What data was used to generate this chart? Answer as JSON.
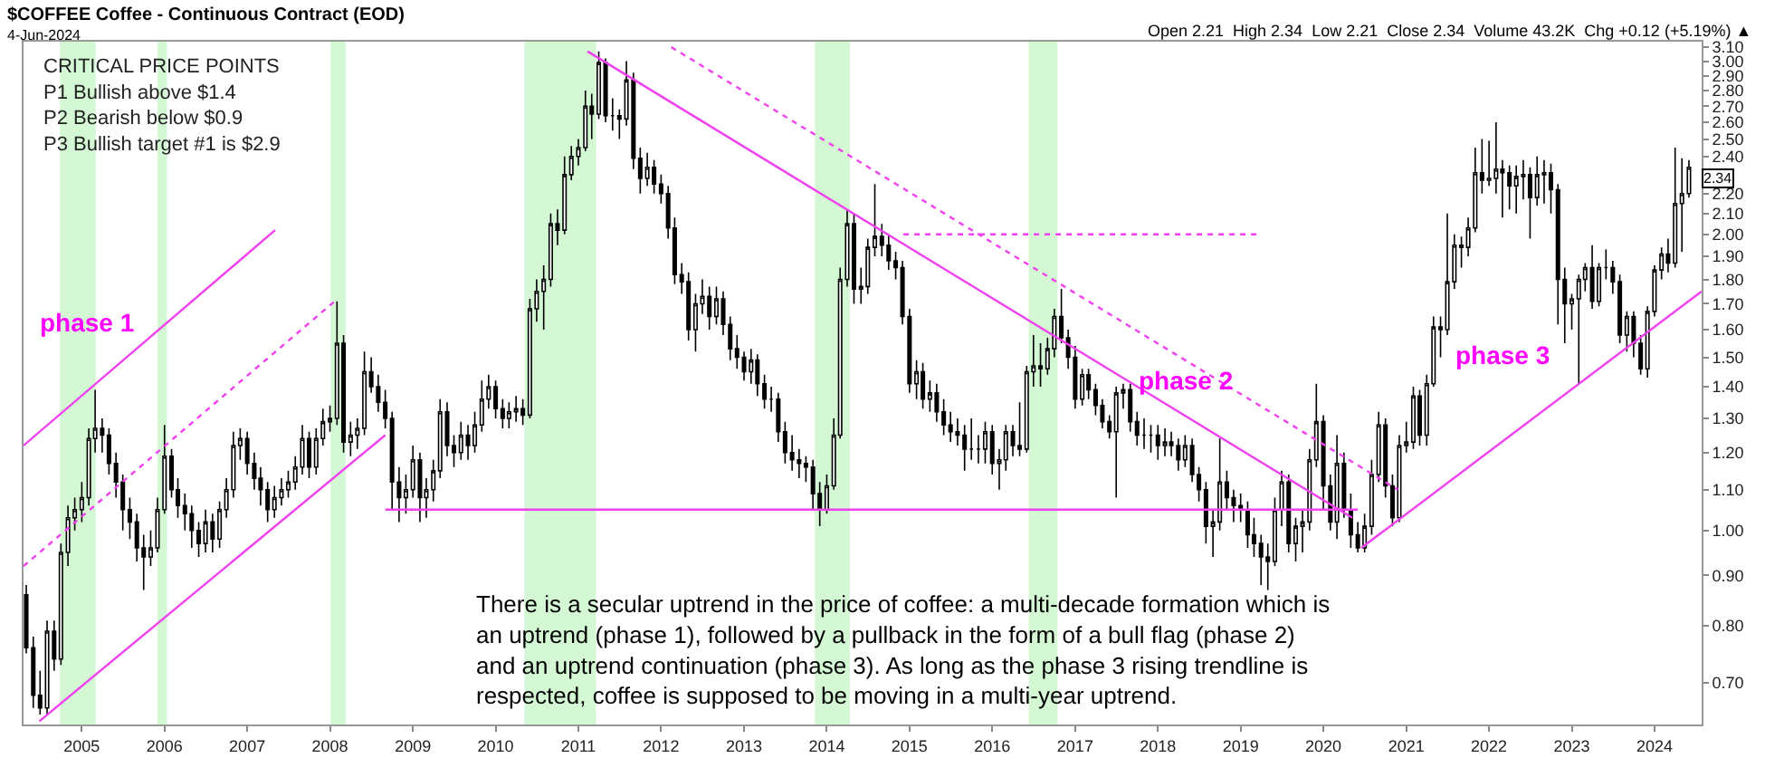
{
  "chart_data": {
    "type": "candlestick",
    "title": "$COFFEE Coffee - Continuous Contract (EOD)",
    "subtitle": "4-Jun-2024",
    "x": [
      "2004-05",
      "2004-06",
      "2004-07",
      "2004-08",
      "2004-09",
      "2004-10",
      "2004-11",
      "2004-12",
      "2005-01",
      "2005-02",
      "2005-03",
      "2005-04",
      "2005-05",
      "2005-06",
      "2005-07",
      "2005-08",
      "2005-09",
      "2005-10",
      "2005-11",
      "2005-12",
      "2006-01",
      "2006-02",
      "2006-03",
      "2006-04",
      "2006-05",
      "2006-06",
      "2006-07",
      "2006-08",
      "2006-09",
      "2006-10",
      "2006-11",
      "2006-12",
      "2007-01",
      "2007-02",
      "2007-03",
      "2007-04",
      "2007-05",
      "2007-06",
      "2007-07",
      "2007-08",
      "2007-09",
      "2007-10",
      "2007-11",
      "2007-12",
      "2008-01",
      "2008-02",
      "2008-03",
      "2008-04",
      "2008-05",
      "2008-06",
      "2008-07",
      "2008-08",
      "2008-09",
      "2008-10",
      "2008-11",
      "2008-12",
      "2009-01",
      "2009-02",
      "2009-03",
      "2009-04",
      "2009-05",
      "2009-06",
      "2009-07",
      "2009-08",
      "2009-09",
      "2009-10",
      "2009-11",
      "2009-12",
      "2010-01",
      "2010-02",
      "2010-03",
      "2010-04",
      "2010-05",
      "2010-06",
      "2010-07",
      "2010-08",
      "2010-09",
      "2010-10",
      "2010-11",
      "2010-12",
      "2011-01",
      "2011-02",
      "2011-03",
      "2011-04",
      "2011-05",
      "2011-06",
      "2011-07",
      "2011-08",
      "2011-09",
      "2011-10",
      "2011-11",
      "2011-12",
      "2012-01",
      "2012-02",
      "2012-03",
      "2012-04",
      "2012-05",
      "2012-06",
      "2012-07",
      "2012-08",
      "2012-09",
      "2012-10",
      "2012-11",
      "2012-12",
      "2013-01",
      "2013-02",
      "2013-03",
      "2013-04",
      "2013-05",
      "2013-06",
      "2013-07",
      "2013-08",
      "2013-09",
      "2013-10",
      "2013-11",
      "2013-12",
      "2014-01",
      "2014-02",
      "2014-03",
      "2014-04",
      "2014-05",
      "2014-06",
      "2014-07",
      "2014-08",
      "2014-09",
      "2014-10",
      "2014-11",
      "2014-12",
      "2015-01",
      "2015-02",
      "2015-03",
      "2015-04",
      "2015-05",
      "2015-06",
      "2015-07",
      "2015-08",
      "2015-09",
      "2015-10",
      "2015-11",
      "2015-12",
      "2016-01",
      "2016-02",
      "2016-03",
      "2016-04",
      "2016-05",
      "2016-06",
      "2016-07",
      "2016-08",
      "2016-09",
      "2016-10",
      "2016-11",
      "2016-12",
      "2017-01",
      "2017-02",
      "2017-03",
      "2017-04",
      "2017-05",
      "2017-06",
      "2017-07",
      "2017-08",
      "2017-09",
      "2017-10",
      "2017-11",
      "2017-12",
      "2018-01",
      "2018-02",
      "2018-03",
      "2018-04",
      "2018-05",
      "2018-06",
      "2018-07",
      "2018-08",
      "2018-09",
      "2018-10",
      "2018-11",
      "2018-12",
      "2019-01",
      "2019-02",
      "2019-03",
      "2019-04",
      "2019-05",
      "2019-06",
      "2019-07",
      "2019-08",
      "2019-09",
      "2019-10",
      "2019-11",
      "2019-12",
      "2020-01",
      "2020-02",
      "2020-03",
      "2020-04",
      "2020-05",
      "2020-06",
      "2020-07",
      "2020-08",
      "2020-09",
      "2020-10",
      "2020-11",
      "2020-12",
      "2021-01",
      "2021-02",
      "2021-03",
      "2021-04",
      "2021-05",
      "2021-06",
      "2021-07",
      "2021-08",
      "2021-09",
      "2021-10",
      "2021-11",
      "2021-12",
      "2022-01",
      "2022-02",
      "2022-03",
      "2022-04",
      "2022-05",
      "2022-06",
      "2022-07",
      "2022-08",
      "2022-09",
      "2022-10",
      "2022-11",
      "2022-12",
      "2023-01",
      "2023-02",
      "2023-03",
      "2023-04",
      "2023-05",
      "2023-06",
      "2023-07",
      "2023-08",
      "2023-09",
      "2023-10",
      "2023-11",
      "2023-12",
      "2024-01",
      "2024-02",
      "2024-03",
      "2024-04",
      "2024-05",
      "2024-06"
    ],
    "ohlc": [
      [
        0.86,
        0.88,
        0.75,
        0.76
      ],
      [
        0.76,
        0.78,
        0.66,
        0.68
      ],
      [
        0.68,
        0.72,
        0.65,
        0.66
      ],
      [
        0.66,
        0.81,
        0.65,
        0.79
      ],
      [
        0.79,
        0.81,
        0.72,
        0.74
      ],
      [
        0.74,
        0.97,
        0.73,
        0.95
      ],
      [
        0.95,
        1.06,
        0.92,
        1.03
      ],
      [
        1.03,
        1.08,
        1.0,
        1.05
      ],
      [
        1.05,
        1.12,
        1.02,
        1.08
      ],
      [
        1.08,
        1.27,
        1.06,
        1.24
      ],
      [
        1.24,
        1.39,
        1.2,
        1.27
      ],
      [
        1.27,
        1.3,
        1.2,
        1.25
      ],
      [
        1.25,
        1.27,
        1.14,
        1.17
      ],
      [
        1.17,
        1.2,
        1.08,
        1.12
      ],
      [
        1.12,
        1.14,
        1.0,
        1.05
      ],
      [
        1.05,
        1.08,
        0.98,
        1.02
      ],
      [
        1.02,
        1.04,
        0.93,
        0.96
      ],
      [
        0.96,
        0.99,
        0.87,
        0.94
      ],
      [
        0.94,
        1.0,
        0.92,
        0.96
      ],
      [
        0.96,
        1.08,
        0.95,
        1.05
      ],
      [
        1.05,
        1.28,
        1.04,
        1.19
      ],
      [
        1.19,
        1.21,
        1.08,
        1.1
      ],
      [
        1.1,
        1.13,
        1.03,
        1.06
      ],
      [
        1.06,
        1.09,
        1.0,
        1.04
      ],
      [
        1.04,
        1.06,
        0.96,
        1.0
      ],
      [
        1.0,
        1.02,
        0.94,
        0.97
      ],
      [
        0.97,
        1.05,
        0.95,
        1.02
      ],
      [
        1.02,
        1.04,
        0.95,
        0.98
      ],
      [
        0.98,
        1.07,
        0.96,
        1.05
      ],
      [
        1.05,
        1.13,
        1.03,
        1.1
      ],
      [
        1.1,
        1.26,
        1.08,
        1.22
      ],
      [
        1.22,
        1.27,
        1.18,
        1.24
      ],
      [
        1.24,
        1.26,
        1.14,
        1.17
      ],
      [
        1.17,
        1.2,
        1.1,
        1.13
      ],
      [
        1.13,
        1.16,
        1.06,
        1.1
      ],
      [
        1.1,
        1.12,
        1.02,
        1.05
      ],
      [
        1.05,
        1.11,
        1.03,
        1.08
      ],
      [
        1.08,
        1.13,
        1.06,
        1.1
      ],
      [
        1.1,
        1.15,
        1.08,
        1.12
      ],
      [
        1.12,
        1.19,
        1.1,
        1.16
      ],
      [
        1.16,
        1.28,
        1.14,
        1.24
      ],
      [
        1.24,
        1.26,
        1.13,
        1.16
      ],
      [
        1.16,
        1.27,
        1.14,
        1.24
      ],
      [
        1.24,
        1.33,
        1.22,
        1.29
      ],
      [
        1.29,
        1.34,
        1.26,
        1.3
      ],
      [
        1.3,
        1.71,
        1.28,
        1.55
      ],
      [
        1.55,
        1.58,
        1.2,
        1.23
      ],
      [
        1.23,
        1.29,
        1.19,
        1.25
      ],
      [
        1.25,
        1.3,
        1.21,
        1.27
      ],
      [
        1.27,
        1.52,
        1.25,
        1.45
      ],
      [
        1.45,
        1.5,
        1.38,
        1.4
      ],
      [
        1.4,
        1.44,
        1.32,
        1.35
      ],
      [
        1.35,
        1.39,
        1.27,
        1.3
      ],
      [
        1.3,
        1.32,
        1.05,
        1.12
      ],
      [
        1.12,
        1.16,
        1.02,
        1.08
      ],
      [
        1.08,
        1.14,
        1.04,
        1.1
      ],
      [
        1.1,
        1.22,
        1.08,
        1.18
      ],
      [
        1.18,
        1.2,
        1.02,
        1.08
      ],
      [
        1.08,
        1.13,
        1.03,
        1.1
      ],
      [
        1.1,
        1.18,
        1.07,
        1.15
      ],
      [
        1.15,
        1.36,
        1.13,
        1.32
      ],
      [
        1.32,
        1.35,
        1.19,
        1.22
      ],
      [
        1.22,
        1.25,
        1.16,
        1.2
      ],
      [
        1.2,
        1.29,
        1.18,
        1.25
      ],
      [
        1.25,
        1.28,
        1.18,
        1.22
      ],
      [
        1.22,
        1.32,
        1.2,
        1.28
      ],
      [
        1.28,
        1.42,
        1.26,
        1.36
      ],
      [
        1.36,
        1.44,
        1.33,
        1.4
      ],
      [
        1.4,
        1.42,
        1.3,
        1.33
      ],
      [
        1.33,
        1.36,
        1.27,
        1.3
      ],
      [
        1.3,
        1.35,
        1.27,
        1.32
      ],
      [
        1.32,
        1.37,
        1.29,
        1.33
      ],
      [
        1.33,
        1.36,
        1.28,
        1.31
      ],
      [
        1.31,
        1.72,
        1.3,
        1.68
      ],
      [
        1.68,
        1.8,
        1.63,
        1.75
      ],
      [
        1.75,
        1.86,
        1.6,
        1.8
      ],
      [
        1.8,
        2.1,
        1.77,
        2.05
      ],
      [
        2.05,
        2.12,
        1.95,
        2.02
      ],
      [
        2.02,
        2.4,
        2.0,
        2.3
      ],
      [
        2.3,
        2.46,
        2.27,
        2.4
      ],
      [
        2.4,
        2.5,
        2.35,
        2.45
      ],
      [
        2.45,
        2.8,
        2.43,
        2.7
      ],
      [
        2.7,
        2.78,
        2.5,
        2.65
      ],
      [
        2.65,
        3.07,
        2.62,
        2.99
      ],
      [
        2.99,
        3.02,
        2.6,
        2.64
      ],
      [
        2.64,
        2.75,
        2.55,
        2.64
      ],
      [
        2.64,
        2.68,
        2.5,
        2.62
      ],
      [
        2.62,
        3.0,
        2.58,
        2.87
      ],
      [
        2.87,
        2.92,
        2.33,
        2.39
      ],
      [
        2.39,
        2.45,
        2.2,
        2.28
      ],
      [
        2.28,
        2.42,
        2.24,
        2.34
      ],
      [
        2.34,
        2.38,
        2.2,
        2.25
      ],
      [
        2.25,
        2.3,
        2.15,
        2.2
      ],
      [
        2.2,
        2.24,
        1.98,
        2.03
      ],
      [
        2.03,
        2.08,
        1.78,
        1.82
      ],
      [
        1.82,
        1.87,
        1.74,
        1.79
      ],
      [
        1.79,
        1.83,
        1.56,
        1.6
      ],
      [
        1.6,
        1.74,
        1.52,
        1.7
      ],
      [
        1.7,
        1.8,
        1.66,
        1.73
      ],
      [
        1.73,
        1.77,
        1.6,
        1.65
      ],
      [
        1.65,
        1.77,
        1.62,
        1.72
      ],
      [
        1.72,
        1.75,
        1.58,
        1.62
      ],
      [
        1.62,
        1.65,
        1.49,
        1.53
      ],
      [
        1.53,
        1.58,
        1.46,
        1.5
      ],
      [
        1.5,
        1.52,
        1.42,
        1.45
      ],
      [
        1.45,
        1.53,
        1.41,
        1.49
      ],
      [
        1.49,
        1.51,
        1.37,
        1.41
      ],
      [
        1.41,
        1.44,
        1.33,
        1.36
      ],
      [
        1.36,
        1.4,
        1.32,
        1.36
      ],
      [
        1.36,
        1.38,
        1.23,
        1.26
      ],
      [
        1.26,
        1.29,
        1.17,
        1.2
      ],
      [
        1.2,
        1.25,
        1.15,
        1.18
      ],
      [
        1.18,
        1.21,
        1.13,
        1.17
      ],
      [
        1.17,
        1.19,
        1.12,
        1.16
      ],
      [
        1.16,
        1.18,
        1.05,
        1.09
      ],
      [
        1.09,
        1.12,
        1.01,
        1.05
      ],
      [
        1.05,
        1.14,
        1.04,
        1.11
      ],
      [
        1.11,
        1.3,
        1.1,
        1.25
      ],
      [
        1.25,
        1.85,
        1.24,
        1.8
      ],
      [
        1.8,
        2.12,
        1.77,
        2.05
      ],
      [
        2.05,
        2.1,
        1.7,
        1.76
      ],
      [
        1.76,
        1.85,
        1.7,
        1.77
      ],
      [
        1.77,
        1.98,
        1.74,
        1.94
      ],
      [
        1.94,
        2.25,
        1.9,
        1.99
      ],
      [
        1.99,
        2.05,
        1.9,
        1.95
      ],
      [
        1.95,
        2.0,
        1.84,
        1.88
      ],
      [
        1.88,
        1.92,
        1.8,
        1.85
      ],
      [
        1.85,
        1.88,
        1.62,
        1.65
      ],
      [
        1.65,
        1.68,
        1.38,
        1.41
      ],
      [
        1.41,
        1.49,
        1.36,
        1.45
      ],
      [
        1.45,
        1.48,
        1.33,
        1.36
      ],
      [
        1.36,
        1.42,
        1.32,
        1.38
      ],
      [
        1.38,
        1.41,
        1.29,
        1.32
      ],
      [
        1.32,
        1.36,
        1.25,
        1.28
      ],
      [
        1.28,
        1.32,
        1.23,
        1.26
      ],
      [
        1.26,
        1.3,
        1.22,
        1.25
      ],
      [
        1.25,
        1.28,
        1.15,
        1.21
      ],
      [
        1.21,
        1.3,
        1.18,
        1.21
      ],
      [
        1.21,
        1.25,
        1.17,
        1.21
      ],
      [
        1.21,
        1.29,
        1.17,
        1.26
      ],
      [
        1.26,
        1.28,
        1.14,
        1.17
      ],
      [
        1.17,
        1.21,
        1.1,
        1.18
      ],
      [
        1.18,
        1.28,
        1.15,
        1.26
      ],
      [
        1.26,
        1.28,
        1.19,
        1.22
      ],
      [
        1.22,
        1.35,
        1.19,
        1.21
      ],
      [
        1.21,
        1.47,
        1.2,
        1.45
      ],
      [
        1.45,
        1.58,
        1.4,
        1.47
      ],
      [
        1.47,
        1.55,
        1.4,
        1.46
      ],
      [
        1.46,
        1.57,
        1.44,
        1.53
      ],
      [
        1.53,
        1.68,
        1.5,
        1.65
      ],
      [
        1.65,
        1.76,
        1.55,
        1.57
      ],
      [
        1.57,
        1.6,
        1.46,
        1.5
      ],
      [
        1.5,
        1.54,
        1.33,
        1.36
      ],
      [
        1.36,
        1.46,
        1.34,
        1.44
      ],
      [
        1.44,
        1.46,
        1.36,
        1.39
      ],
      [
        1.39,
        1.41,
        1.31,
        1.34
      ],
      [
        1.34,
        1.36,
        1.27,
        1.29
      ],
      [
        1.29,
        1.31,
        1.24,
        1.26
      ],
      [
        1.26,
        1.4,
        1.08,
        1.38
      ],
      [
        1.38,
        1.41,
        1.33,
        1.39
      ],
      [
        1.39,
        1.41,
        1.26,
        1.29
      ],
      [
        1.29,
        1.32,
        1.22,
        1.25
      ],
      [
        1.25,
        1.3,
        1.21,
        1.25
      ],
      [
        1.25,
        1.28,
        1.2,
        1.25
      ],
      [
        1.25,
        1.28,
        1.18,
        1.22
      ],
      [
        1.22,
        1.27,
        1.19,
        1.23
      ],
      [
        1.23,
        1.26,
        1.19,
        1.22
      ],
      [
        1.22,
        1.24,
        1.15,
        1.18
      ],
      [
        1.18,
        1.25,
        1.16,
        1.22
      ],
      [
        1.22,
        1.24,
        1.12,
        1.14
      ],
      [
        1.14,
        1.16,
        1.07,
        1.1
      ],
      [
        1.1,
        1.12,
        0.97,
        1.01
      ],
      [
        1.01,
        1.05,
        0.94,
        1.02
      ],
      [
        1.02,
        1.24,
        1.0,
        1.12
      ],
      [
        1.12,
        1.15,
        1.05,
        1.08
      ],
      [
        1.08,
        1.1,
        1.02,
        1.06
      ],
      [
        1.06,
        1.09,
        1.02,
        1.05
      ],
      [
        1.05,
        1.07,
        0.96,
        0.99
      ],
      [
        0.99,
        1.03,
        0.94,
        0.97
      ],
      [
        0.97,
        0.99,
        0.88,
        0.94
      ],
      [
        0.94,
        0.97,
        0.87,
        0.93
      ],
      [
        0.93,
        1.08,
        0.92,
        1.05
      ],
      [
        1.05,
        1.15,
        1.01,
        1.12
      ],
      [
        1.12,
        1.14,
        0.95,
        0.97
      ],
      [
        0.97,
        1.03,
        0.93,
        1.01
      ],
      [
        1.01,
        1.05,
        0.95,
        1.02
      ],
      [
        1.02,
        1.21,
        1.0,
        1.18
      ],
      [
        1.18,
        1.41,
        1.16,
        1.29
      ],
      [
        1.29,
        1.31,
        1.05,
        1.11
      ],
      [
        1.11,
        1.14,
        1.0,
        1.02
      ],
      [
        1.02,
        1.25,
        0.98,
        1.17
      ],
      [
        1.17,
        1.2,
        1.03,
        1.05
      ],
      [
        1.05,
        1.09,
        0.96,
        0.99
      ],
      [
        0.99,
        1.02,
        0.95,
        0.96
      ],
      [
        0.96,
        1.04,
        0.95,
        1.01
      ],
      [
        1.01,
        1.18,
        0.99,
        1.14
      ],
      [
        1.14,
        1.32,
        1.12,
        1.28
      ],
      [
        1.28,
        1.3,
        1.08,
        1.11
      ],
      [
        1.11,
        1.14,
        1.01,
        1.03
      ],
      [
        1.03,
        1.25,
        1.02,
        1.22
      ],
      [
        1.22,
        1.29,
        1.2,
        1.23
      ],
      [
        1.23,
        1.4,
        1.21,
        1.37
      ],
      [
        1.37,
        1.39,
        1.22,
        1.25
      ],
      [
        1.25,
        1.44,
        1.22,
        1.41
      ],
      [
        1.41,
        1.65,
        1.4,
        1.61
      ],
      [
        1.61,
        1.65,
        1.5,
        1.6
      ],
      [
        1.6,
        2.1,
        1.58,
        1.79
      ],
      [
        1.79,
        2.0,
        1.76,
        1.95
      ],
      [
        1.95,
        1.99,
        1.85,
        1.94
      ],
      [
        1.94,
        2.08,
        1.9,
        2.03
      ],
      [
        2.03,
        2.45,
        2.01,
        2.31
      ],
      [
        2.31,
        2.5,
        2.2,
        2.27
      ],
      [
        2.27,
        2.49,
        2.24,
        2.28
      ],
      [
        2.28,
        2.6,
        2.2,
        2.33
      ],
      [
        2.33,
        2.38,
        2.08,
        2.31
      ],
      [
        2.31,
        2.35,
        2.12,
        2.24
      ],
      [
        2.24,
        2.35,
        2.1,
        2.29
      ],
      [
        2.29,
        2.38,
        2.17,
        2.3
      ],
      [
        2.3,
        2.34,
        1.98,
        2.18
      ],
      [
        2.18,
        2.4,
        2.14,
        2.3
      ],
      [
        2.3,
        2.38,
        2.15,
        2.31
      ],
      [
        2.31,
        2.36,
        2.1,
        2.22
      ],
      [
        2.22,
        2.25,
        1.62,
        1.8
      ],
      [
        1.8,
        1.85,
        1.55,
        1.7
      ],
      [
        1.7,
        1.74,
        1.6,
        1.72
      ],
      [
        1.72,
        1.82,
        1.41,
        1.8
      ],
      [
        1.8,
        1.87,
        1.75,
        1.85
      ],
      [
        1.85,
        1.95,
        1.68,
        1.71
      ],
      [
        1.71,
        1.87,
        1.69,
        1.85
      ],
      [
        1.85,
        1.93,
        1.8,
        1.85
      ],
      [
        1.85,
        1.88,
        1.74,
        1.79
      ],
      [
        1.79,
        1.82,
        1.55,
        1.58
      ],
      [
        1.58,
        1.67,
        1.52,
        1.65
      ],
      [
        1.65,
        1.67,
        1.5,
        1.55
      ],
      [
        1.55,
        1.58,
        1.44,
        1.46
      ],
      [
        1.46,
        1.69,
        1.43,
        1.67
      ],
      [
        1.67,
        1.86,
        1.65,
        1.84
      ],
      [
        1.84,
        1.94,
        1.8,
        1.91
      ],
      [
        1.91,
        1.98,
        1.83,
        1.87
      ],
      [
        1.87,
        2.45,
        1.85,
        2.15
      ],
      [
        2.15,
        2.39,
        1.92,
        2.2
      ],
      [
        2.2,
        2.38,
        2.18,
        2.34
      ]
    ],
    "series": [
      {
        "type": "line",
        "color": "#f040f0",
        "line_style": "solid",
        "x": [
          "2004-04-19",
          "2007-05-04"
        ],
        "values": [
          1.22,
          2.02
        ]
      },
      {
        "type": "line",
        "color": "#f040f0",
        "line_style": "solid",
        "x": [
          "2004-06-28",
          "2008-09-01"
        ],
        "values": [
          0.64,
          1.25
        ]
      },
      {
        "type": "line",
        "color": "#f040f0",
        "line_style": "dotted",
        "x": [
          "2004-04-19",
          "2008-01-22"
        ],
        "values": [
          0.92,
          1.71
        ]
      },
      {
        "type": "line",
        "color": "#f040f0",
        "line_style": "solid",
        "x": [
          "2008-09-01",
          "2020-06-01"
        ],
        "values": [
          1.05,
          1.05
        ]
      },
      {
        "type": "line",
        "color": "#f040f0",
        "line_style": "solid",
        "x": [
          "2011-02-10",
          "2020-05-08"
        ],
        "values": [
          3.07,
          1.03
        ]
      },
      {
        "type": "line",
        "color": "#f040f0",
        "line_style": "dotted",
        "x": [
          "2012-02-15",
          "2020-11-25"
        ],
        "values": [
          3.1,
          1.1
        ]
      },
      {
        "type": "line",
        "color": "#f040f0",
        "line_style": "dotted",
        "x": [
          "2014-12-05",
          "2019-03-25"
        ],
        "values": [
          2.0,
          2.0
        ]
      },
      {
        "type": "line",
        "color": "#f040f0",
        "line_style": "solid",
        "x": [
          "2020-06-16",
          "2024-07-27"
        ],
        "values": [
          0.96,
          1.75
        ]
      }
    ],
    "bands": [
      {
        "axis": "x",
        "from": "2004-09-27",
        "to": "2005-03-03",
        "color": "#c6f5c6"
      },
      {
        "axis": "x",
        "from": "2005-12-01",
        "to": "2006-01-12",
        "color": "#c6f5c6"
      },
      {
        "axis": "x",
        "from": "2008-01-04",
        "to": "2008-03-10",
        "color": "#c6f5c6"
      },
      {
        "axis": "x",
        "from": "2010-05-08",
        "to": "2011-03-20",
        "color": "#c6f5c6"
      },
      {
        "axis": "x",
        "from": "2013-11-10",
        "to": "2014-04-13",
        "color": "#c6f5c6"
      },
      {
        "axis": "x",
        "from": "2016-06-10",
        "to": "2016-10-15",
        "color": "#c6f5c6"
      }
    ],
    "annotations": [
      "Open 2.21  High 2.34  Low 2.21  Close 2.34  Volume 43.2K  Chg +0.12 (+5.19%) ▲",
      "CRITICAL PRICE POINTS\nP1 Bullish above $1.4\nP2 Bearish below $0.9\nP3 Bullish target #1 is $2.9",
      "There is a secular uptrend in the price of coffee: a multi-decade formation which is\nan uptrend (phase 1), followed by a pullback in the form of a bull flag (phase 2)\nand an uptrend continuation (phase 3). As long as the phase 3 rising trendline is\nrespected, coffee is supposed to be moving in a multi-year uptrend.",
      "2.34",
      "phase 1",
      "phase 2",
      "phase 3"
    ],
    "log": "y",
    "grid": false,
    "xlim": [
      "2004-04-19",
      "2024-07-27"
    ],
    "xticks": [
      {
        "value": "2005-01-01",
        "label": "2005"
      },
      {
        "value": "2006-01-01",
        "label": "2006"
      },
      {
        "value": "2007-01-01",
        "label": "2007"
      },
      {
        "value": "2008-01-01",
        "label": "2008"
      },
      {
        "value": "2009-01-01",
        "label": "2009"
      },
      {
        "value": "2010-01-01",
        "label": "2010"
      },
      {
        "value": "2011-01-01",
        "label": "2011"
      },
      {
        "value": "2012-01-01",
        "label": "2012"
      },
      {
        "value": "2013-01-01",
        "label": "2013"
      },
      {
        "value": "2014-01-01",
        "label": "2014"
      },
      {
        "value": "2015-01-01",
        "label": "2015"
      },
      {
        "value": "2016-01-01",
        "label": "2016"
      },
      {
        "value": "2017-01-01",
        "label": "2017"
      },
      {
        "value": "2018-01-01",
        "label": "2018"
      },
      {
        "value": "2019-01-01",
        "label": "2019"
      },
      {
        "value": "2020-01-01",
        "label": "2020"
      },
      {
        "value": "2021-01-01",
        "label": "2021"
      },
      {
        "value": "2022-01-01",
        "label": "2022"
      },
      {
        "value": "2023-01-01",
        "label": "2023"
      },
      {
        "value": "2024-01-01",
        "label": "2024"
      }
    ],
    "ylim": [
      0.635,
      3.14
    ],
    "yticks": [
      {
        "value": 0.7,
        "label": "0.70"
      },
      {
        "value": 0.8,
        "label": "0.80"
      },
      {
        "value": 0.9,
        "label": "0.90"
      },
      {
        "value": 1.0,
        "label": "1.00"
      },
      {
        "value": 1.1,
        "label": "1.10"
      },
      {
        "value": 1.2,
        "label": "1.20"
      },
      {
        "value": 1.3,
        "label": "1.30"
      },
      {
        "value": 1.4,
        "label": "1.40"
      },
      {
        "value": 1.5,
        "label": "1.50"
      },
      {
        "value": 1.6,
        "label": "1.60"
      },
      {
        "value": 1.7,
        "label": "1.70"
      },
      {
        "value": 1.8,
        "label": "1.80"
      },
      {
        "value": 1.9,
        "label": "1.90"
      },
      {
        "value": 2.0,
        "label": "2.00"
      },
      {
        "value": 2.1,
        "label": "2.10"
      },
      {
        "value": 2.2,
        "label": "2.20"
      },
      {
        "value": 2.3,
        "label": null
      },
      {
        "value": 2.4,
        "label": "2.40"
      },
      {
        "value": 2.5,
        "label": "2.50"
      },
      {
        "value": 2.6,
        "label": "2.60"
      },
      {
        "value": 2.7,
        "label": "2.70"
      },
      {
        "value": 2.8,
        "label": "2.80"
      },
      {
        "value": 2.9,
        "label": "2.90"
      },
      {
        "value": 3.0,
        "label": "3.00"
      },
      {
        "value": 3.1,
        "label": "3.10"
      }
    ]
  }
}
